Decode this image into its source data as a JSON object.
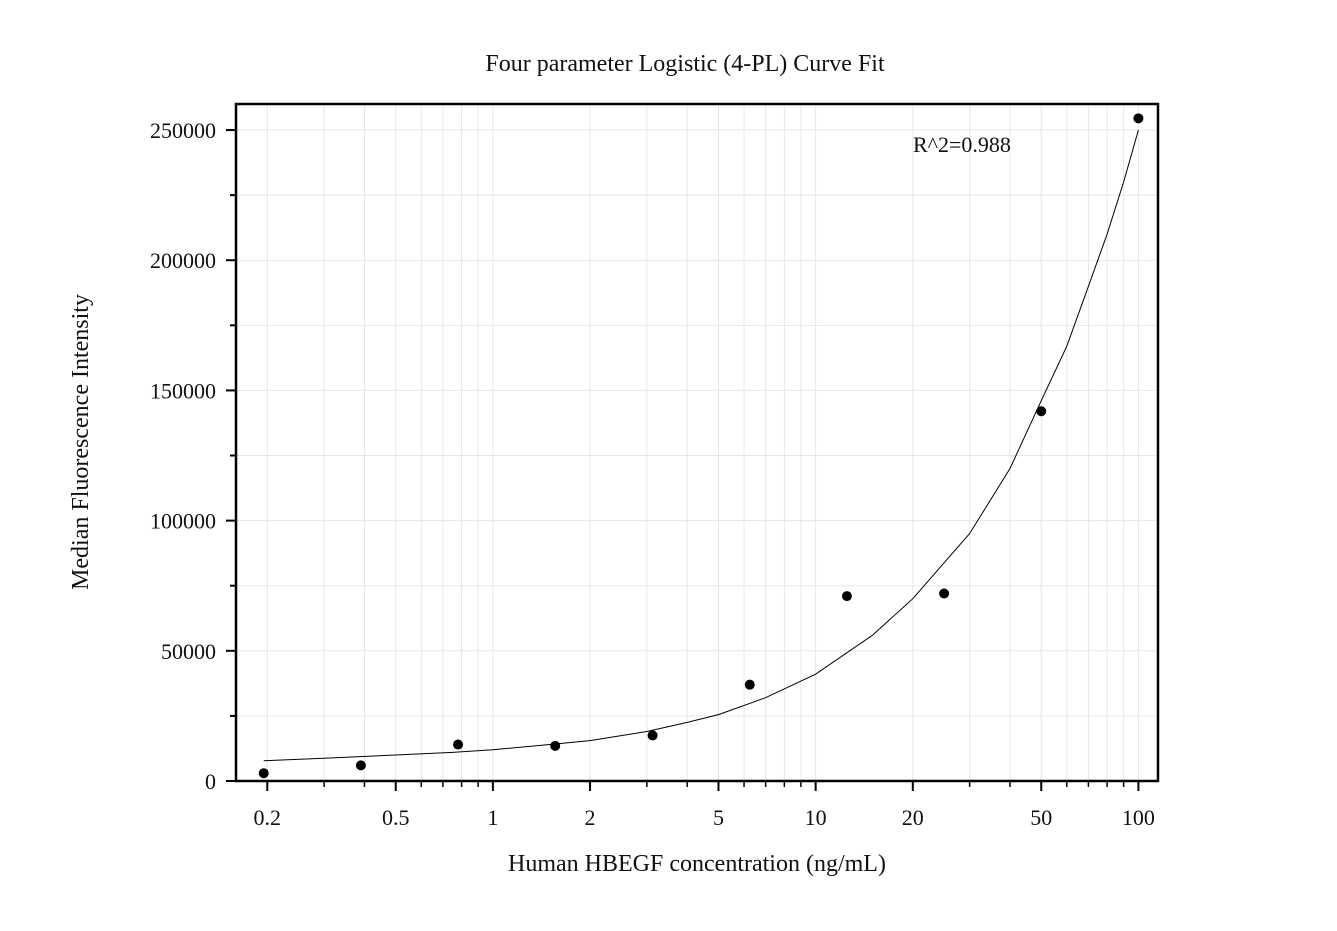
{
  "chart_data": {
    "type": "scatter",
    "title": "Four parameter Logistic (4-PL) Curve Fit",
    "xlabel": "Human HBEGF concentration (ng/mL)",
    "ylabel": "Median Fluorescence Intensity",
    "x_scale": "log",
    "xlim": [
      0.16,
      115
    ],
    "ylim": [
      0,
      260000
    ],
    "grid": true,
    "x_ticks": [
      0.2,
      0.5,
      1,
      2,
      5,
      10,
      20,
      50,
      100
    ],
    "x_tick_labels": [
      "0.2",
      "0.5",
      "1",
      "2",
      "5",
      "10",
      "20",
      "50",
      "100"
    ],
    "y_ticks": [
      0,
      50000,
      100000,
      150000,
      200000,
      250000
    ],
    "y_tick_labels": [
      "0",
      "50000",
      "100000",
      "150000",
      "200000",
      "250000"
    ],
    "series": [
      {
        "kind": "points",
        "x": [
          0.195,
          0.39,
          0.78,
          1.56,
          3.125,
          6.25,
          12.5,
          25,
          50,
          100
        ],
        "y": [
          3000,
          6000,
          14000,
          13500,
          17500,
          37000,
          71000,
          72000,
          142000,
          254500
        ]
      },
      {
        "kind": "fit-curve",
        "x": [
          0.195,
          0.3,
          0.5,
          0.75,
          1,
          1.5,
          2,
          3,
          4,
          5,
          7,
          10,
          15,
          20,
          30,
          40,
          50,
          60,
          70,
          80,
          90,
          100
        ],
        "y": [
          7800,
          8700,
          10000,
          11000,
          12000,
          14000,
          15500,
          19000,
          22500,
          25500,
          32000,
          41000,
          56000,
          70000,
          95000,
          120000,
          146000,
          167000,
          190000,
          210000,
          230000,
          250000
        ]
      }
    ],
    "annotations": [
      "R^2=0.988"
    ]
  }
}
